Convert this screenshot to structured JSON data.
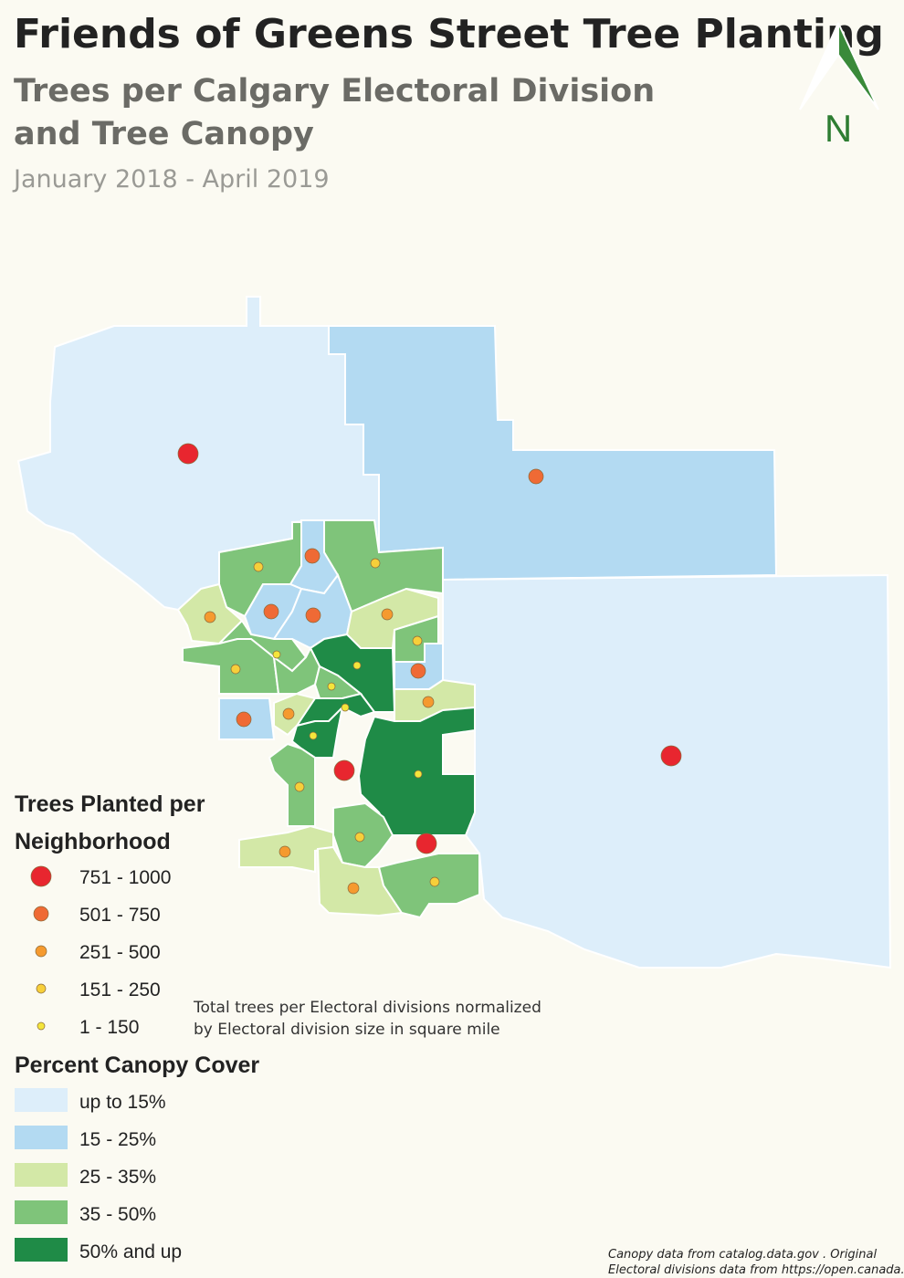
{
  "header": {
    "title": "Friends of Greens Street Tree Planting",
    "subtitle": [
      "Trees per Calgary Electoral Division",
      "and Tree Canopy"
    ],
    "date_range": "January 2018 - April 2019",
    "north": "N"
  },
  "legend_trees": {
    "title": [
      "Trees Planted per",
      "Neighborhood"
    ],
    "items": [
      "751 - 1000",
      "501 - 750",
      "251 - 500",
      "151 - 250",
      "1 - 150"
    ]
  },
  "note": [
    "Total trees per Electoral divisions normalized",
    "by Electoral division size in square mile"
  ],
  "legend_canopy": {
    "title": "Percent Canopy Cover",
    "items": [
      "up to 15%",
      "15 - 25%",
      "25 - 35%",
      "35 - 50%",
      "50% and up"
    ]
  },
  "credits": [
    "Canopy data from catalog.data.gov . Original",
    "Electoral divisions data from https://open.canada.ca"
  ]
}
